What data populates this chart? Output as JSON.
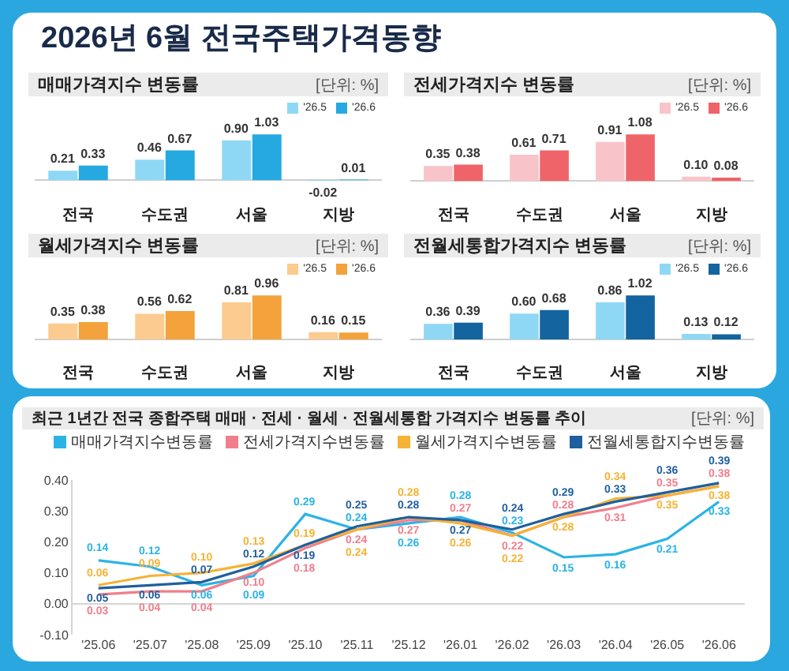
{
  "chart_data": [
    {
      "type": "other",
      "title": "2026년 6월 전국주택가격동향"
    },
    {
      "type": "bar",
      "title": "매매가격지수 변동률",
      "annotations": [
        "[단위: %]"
      ],
      "categories": [
        "전국",
        "수도권",
        "서울",
        "지방"
      ],
      "legend": "top right",
      "tick_labels": "x",
      "series": [
        {
          "name": "'26.5",
          "color": "#8fd8f5",
          "values": [
            0.21,
            0.46,
            0.9,
            -0.02
          ],
          "value_labels": [
            "0.21",
            "0.46",
            "0.90",
            "-0.02"
          ]
        },
        {
          "name": "'26.6",
          "color": "#25a9e0",
          "values": [
            0.33,
            0.67,
            1.03,
            0.01
          ],
          "value_labels": [
            "0.33",
            "0.67",
            "1.03",
            "0.01"
          ]
        }
      ]
    },
    {
      "type": "bar",
      "title": "전세가격지수 변동률",
      "annotations": [
        "[단위: %]"
      ],
      "categories": [
        "전국",
        "수도권",
        "서울",
        "지방"
      ],
      "legend": "top right",
      "tick_labels": "x",
      "series": [
        {
          "name": "'26.5",
          "color": "#f8c4c9",
          "values": [
            0.35,
            0.61,
            0.91,
            0.1
          ],
          "value_labels": [
            "0.35",
            "0.61",
            "0.91",
            "0.10"
          ]
        },
        {
          "name": "'26.6",
          "color": "#ef6468",
          "values": [
            0.38,
            0.71,
            1.08,
            0.08
          ],
          "value_labels": [
            "0.38",
            "0.71",
            "1.08",
            "0.08"
          ]
        }
      ]
    },
    {
      "type": "bar",
      "title": "월세가격지수 변동률",
      "annotations": [
        "[단위: %]"
      ],
      "categories": [
        "전국",
        "수도권",
        "서울",
        "지방"
      ],
      "legend": "top right",
      "tick_labels": "x",
      "series": [
        {
          "name": "'26.5",
          "color": "#fbcb8f",
          "values": [
            0.35,
            0.56,
            0.81,
            0.16
          ],
          "value_labels": [
            "0.35",
            "0.56",
            "0.81",
            "0.16"
          ]
        },
        {
          "name": "'26.6",
          "color": "#f4a23b",
          "values": [
            0.38,
            0.62,
            0.96,
            0.15
          ],
          "value_labels": [
            "0.38",
            "0.62",
            "0.96",
            "0.15"
          ]
        }
      ]
    },
    {
      "type": "bar",
      "title": "전월세통합가격지수 변동률",
      "annotations": [
        "[단위: %]"
      ],
      "categories": [
        "전국",
        "수도권",
        "서울",
        "지방"
      ],
      "legend": "top right",
      "tick_labels": "x",
      "series": [
        {
          "name": "'26.5",
          "color": "#8fd8f5",
          "values": [
            0.36,
            0.6,
            0.86,
            0.13
          ],
          "value_labels": [
            "0.36",
            "0.60",
            "0.86",
            "0.13"
          ]
        },
        {
          "name": "'26.6",
          "color": "#13649f",
          "values": [
            0.39,
            0.68,
            1.02,
            0.12
          ],
          "value_labels": [
            "0.39",
            "0.68",
            "1.02",
            "0.12"
          ]
        }
      ]
    },
    {
      "type": "line",
      "title": "최근 1년간 전국 종합주택 매매 · 전세 · 월세 · 전월세통합 가격지수 변동률 추이",
      "annotations": [
        "[단위: %]"
      ],
      "categories": [
        "'25.06",
        "'25.07",
        "'25.08",
        "'25.09",
        "'25.10",
        "'25.11",
        "'25.12",
        "'26.01",
        "'26.02",
        "'26.03",
        "'26.04",
        "'26.05",
        "'26.06"
      ],
      "ylim": [
        -0.1,
        0.4
      ],
      "yticks": [
        {
          "value": 0.4,
          "label": "0.40"
        },
        {
          "value": 0.3,
          "label": "0.30"
        },
        {
          "value": 0.2,
          "label": "0.20"
        },
        {
          "value": 0.1,
          "label": "0.10"
        },
        {
          "value": 0,
          "label": "0.00"
        },
        {
          "value": -0.1,
          "label": "-0.10"
        }
      ],
      "legend": "top right",
      "series": [
        {
          "name": "매매가격지수변동률",
          "color": "#2bb3e6",
          "values": [
            0.14,
            0.12,
            0.06,
            0.09,
            0.29,
            0.24,
            0.26,
            0.28,
            0.23,
            0.15,
            0.16,
            0.21,
            0.33
          ],
          "value_labels": [
            "0.14",
            "0.12",
            "0.06",
            "0.09",
            "0.29",
            "0.24",
            "0.26",
            "0.28",
            "0.23",
            "0.15",
            "0.16",
            "0.21",
            "0.33"
          ]
        },
        {
          "name": "전세가격지수변동률",
          "color": "#f07f8c",
          "values": [
            0.03,
            0.04,
            0.04,
            0.1,
            0.18,
            0.24,
            0.27,
            0.27,
            0.22,
            0.28,
            0.31,
            0.35,
            0.38
          ],
          "value_labels": [
            "0.03",
            "0.04",
            "0.04",
            "0.10",
            "0.18",
            "0.24",
            "0.27",
            "0.27",
            "0.22",
            "0.28",
            "0.31",
            "0.35",
            "0.38"
          ]
        },
        {
          "name": "월세가격지수변동률",
          "color": "#f5b335",
          "values": [
            0.06,
            0.09,
            0.1,
            0.13,
            0.19,
            0.24,
            0.28,
            0.26,
            0.22,
            0.28,
            0.34,
            0.35,
            0.38
          ],
          "value_labels": [
            "0.06",
            "0.09",
            "0.10",
            "0.13",
            "0.19",
            "0.24",
            "0.28",
            "0.26",
            "0.22",
            "0.28",
            "0.34",
            "0.35",
            "0.38"
          ]
        },
        {
          "name": "전월세통합지수변동률",
          "color": "#1f5f9e",
          "values": [
            0.05,
            0.06,
            0.07,
            0.12,
            0.19,
            0.25,
            0.28,
            0.27,
            0.24,
            0.29,
            0.33,
            0.36,
            0.39
          ],
          "value_labels": [
            "0.05",
            "0.06",
            "0.07",
            "0.12",
            "0.19",
            "0.25",
            "0.28",
            "0.27",
            "0.24",
            "0.29",
            "0.33",
            "0.36",
            "0.39"
          ]
        }
      ]
    }
  ]
}
